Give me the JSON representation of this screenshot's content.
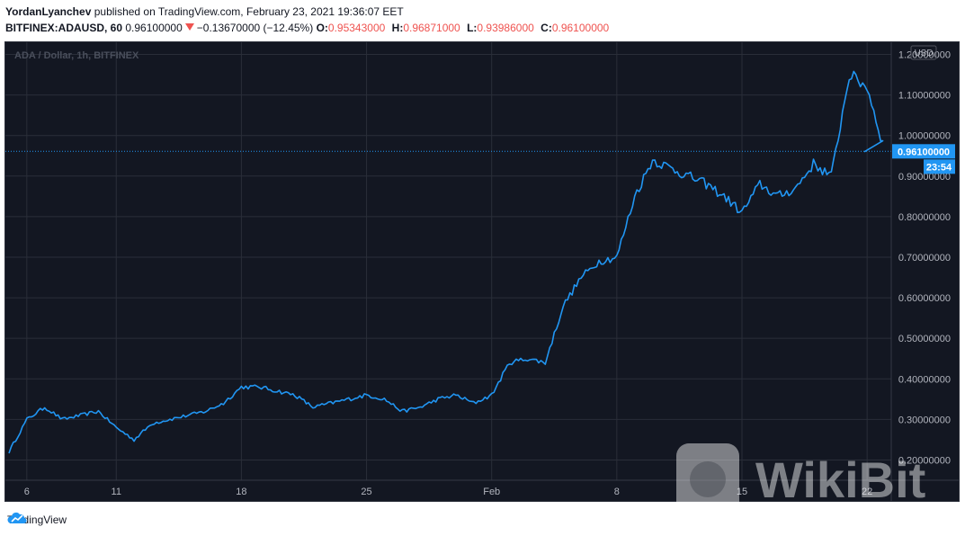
{
  "header": {
    "author": "YordanLyanchev",
    "published_text": "published on TradingView.com, February 23, 2021 19:36:07 EET",
    "symbol": "BITFINEX:ADAUSD, 60",
    "last_price": "0.96100000",
    "change": "−0.13670000 (−12.45%)",
    "open_label": "O:",
    "open": "0.95343000",
    "high_label": "H:",
    "high": "0.96871000",
    "low_label": "L:",
    "low": "0.93986000",
    "close_label": "C:",
    "close": "0.96100000"
  },
  "chart_data": {
    "type": "line",
    "title": "ADA / Dollar, 1h, BITFINEX",
    "currency": "USD",
    "x_tick_labels": [
      "6",
      "11",
      "18",
      "25",
      "Feb",
      "8",
      "15",
      "22"
    ],
    "y_tick_labels": [
      "0.20000000",
      "0.30000000",
      "0.40000000",
      "0.50000000",
      "0.60000000",
      "0.70000000",
      "0.80000000",
      "0.90000000",
      "1.00000000",
      "1.10000000",
      "1.20000000"
    ],
    "ylim": [
      0.15,
      1.23
    ],
    "current_price_label": "0.96100000",
    "countdown_label": "23:54",
    "x_dates": [
      "2021-01-05",
      "2021-01-06",
      "2021-01-07",
      "2021-01-08",
      "2021-01-09",
      "2021-01-10",
      "2021-01-11",
      "2021-01-12",
      "2021-01-13",
      "2021-01-14",
      "2021-01-15",
      "2021-01-16",
      "2021-01-17",
      "2021-01-18",
      "2021-01-19",
      "2021-01-20",
      "2021-01-21",
      "2021-01-22",
      "2021-01-23",
      "2021-01-24",
      "2021-01-25",
      "2021-01-26",
      "2021-01-27",
      "2021-01-28",
      "2021-01-29",
      "2021-01-30",
      "2021-01-31",
      "2021-02-01",
      "2021-02-02",
      "2021-02-03",
      "2021-02-04",
      "2021-02-05",
      "2021-02-06",
      "2021-02-07",
      "2021-02-08",
      "2021-02-09",
      "2021-02-10",
      "2021-02-11",
      "2021-02-12",
      "2021-02-13",
      "2021-02-14",
      "2021-02-15",
      "2021-02-16",
      "2021-02-17",
      "2021-02-18",
      "2021-02-19",
      "2021-02-20",
      "2021-02-21",
      "2021-02-22",
      "2021-02-23"
    ],
    "values": [
      0.22,
      0.3,
      0.33,
      0.3,
      0.31,
      0.32,
      0.28,
      0.25,
      0.29,
      0.3,
      0.31,
      0.32,
      0.34,
      0.38,
      0.38,
      0.37,
      0.36,
      0.33,
      0.34,
      0.35,
      0.36,
      0.35,
      0.32,
      0.33,
      0.35,
      0.36,
      0.34,
      0.36,
      0.44,
      0.45,
      0.44,
      0.58,
      0.65,
      0.69,
      0.7,
      0.85,
      0.94,
      0.92,
      0.9,
      0.88,
      0.85,
      0.81,
      0.88,
      0.85,
      0.87,
      0.93,
      0.9,
      1.15,
      1.12,
      0.96
    ],
    "line_color": "#2196f3",
    "grid": true
  },
  "watermark": {
    "text": "WikiBit"
  },
  "footer": {
    "brand": "TradingView"
  }
}
